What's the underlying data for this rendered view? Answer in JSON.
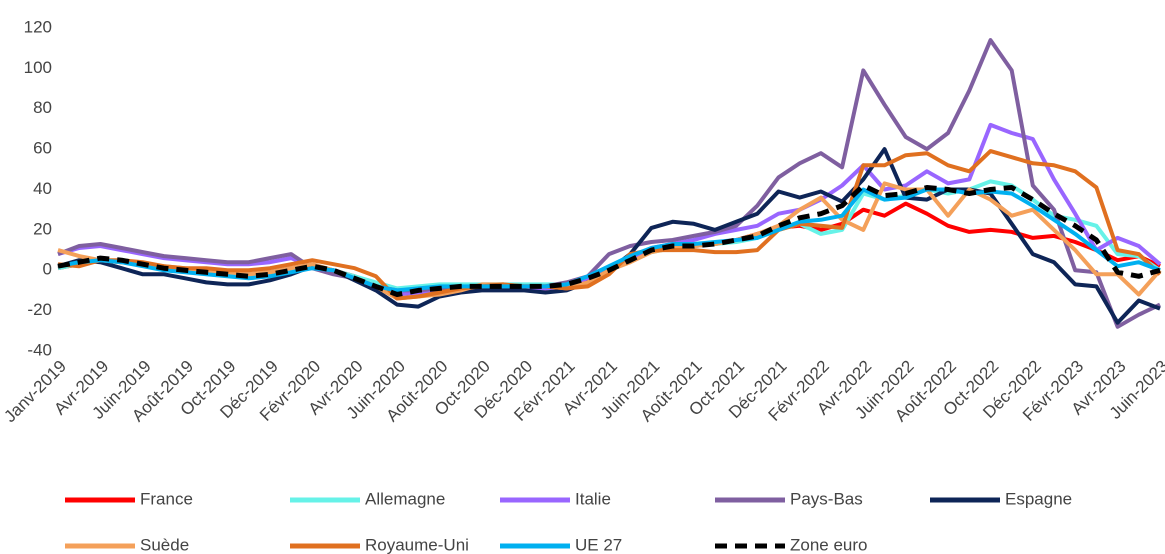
{
  "chart_data": {
    "type": "line",
    "categories": [
      "Janv-2019",
      null,
      "Avr-2019",
      null,
      "Juin-2019",
      null,
      "Août-2019",
      null,
      "Oct-2019",
      null,
      "Déc-2019",
      null,
      "Févr-2020",
      null,
      "Avr-2020",
      null,
      "Juin-2020",
      null,
      "Août-2020",
      null,
      "Oct-2020",
      null,
      "Déc-2020",
      null,
      "Févr-2021",
      null,
      "Avr-2021",
      null,
      "Juin-2021",
      null,
      "Août-2021",
      null,
      "Oct-2021",
      null,
      "Déc-2021",
      null,
      "Févr-2022",
      null,
      "Avr-2022",
      null,
      "Juin-2022",
      null,
      "Août-2022",
      null,
      "Oct-2022",
      null,
      "Déc-2022",
      null,
      "Févr-2023",
      null,
      "Avr-2023",
      null,
      "Juin-2023"
    ],
    "ylim": [
      -40,
      120
    ],
    "yticks": [
      -40,
      -20,
      0,
      20,
      40,
      60,
      80,
      100,
      120
    ],
    "grid": false,
    "series": [
      {
        "name": "France",
        "color": "#ff0000",
        "values": [
          1,
          3,
          5,
          4,
          3,
          1,
          0,
          -1,
          -2,
          -2,
          -1,
          1,
          2,
          0,
          -3,
          -8,
          -11,
          -10,
          -9,
          -8,
          -8,
          -8,
          -8,
          -9,
          -8,
          -5,
          0,
          6,
          10,
          11,
          12,
          13,
          15,
          18,
          21,
          22,
          20,
          23,
          30,
          27,
          33,
          28,
          22,
          19,
          20,
          19,
          16,
          17,
          14,
          10,
          5,
          7,
          2
        ]
      },
      {
        "name": "Allemagne",
        "color": "#66f2e8",
        "values": [
          1,
          3,
          5,
          4,
          3,
          1,
          0,
          -1,
          -2,
          -2,
          -1,
          1,
          2,
          0,
          -3,
          -6,
          -9,
          -8,
          -7,
          -7,
          -7,
          -7,
          -7,
          -7,
          -7,
          -4,
          0,
          5,
          9,
          11,
          12,
          13,
          14,
          16,
          20,
          23,
          18,
          20,
          38,
          35,
          37,
          40,
          38,
          40,
          44,
          42,
          35,
          27,
          25,
          22,
          8,
          7,
          0
        ]
      },
      {
        "name": "Italie",
        "color": "#9966ff",
        "values": [
          8,
          11,
          12,
          10,
          8,
          6,
          5,
          4,
          3,
          3,
          4,
          6,
          2,
          0,
          -4,
          -8,
          -12,
          -11,
          -10,
          -9,
          -9,
          -9,
          -9,
          -9,
          -8,
          -5,
          0,
          6,
          11,
          13,
          15,
          18,
          20,
          22,
          28,
          30,
          35,
          42,
          52,
          40,
          42,
          49,
          43,
          45,
          72,
          68,
          65,
          45,
          28,
          10,
          16,
          12,
          3
        ]
      },
      {
        "name": "Pays-Bas",
        "color": "#7f5fa0",
        "values": [
          8,
          12,
          13,
          11,
          9,
          7,
          6,
          5,
          4,
          4,
          6,
          8,
          1,
          -2,
          -4,
          -8,
          -10,
          -10,
          -9,
          -9,
          -9,
          -8,
          -8,
          -8,
          -6,
          -3,
          8,
          12,
          14,
          15,
          17,
          19,
          22,
          32,
          46,
          53,
          58,
          51,
          99,
          82,
          66,
          60,
          68,
          89,
          114,
          99,
          42,
          30,
          0,
          -1,
          -28,
          -22,
          -17
        ]
      },
      {
        "name": "Espagne",
        "color": "#0e2557",
        "values": [
          2,
          5,
          4,
          1,
          -2,
          -2,
          -4,
          -6,
          -7,
          -7,
          -5,
          -2,
          2,
          0,
          -5,
          -10,
          -17,
          -18,
          -13,
          -11,
          -10,
          -10,
          -10,
          -11,
          -10,
          -6,
          0,
          8,
          21,
          24,
          23,
          20,
          24,
          28,
          39,
          36,
          39,
          34,
          45,
          60,
          36,
          35,
          40,
          40,
          38,
          23,
          8,
          4,
          -7,
          -8,
          -26,
          -15,
          -19
        ]
      },
      {
        "name": "Suède",
        "color": "#f4a05a",
        "values": [
          10,
          7,
          5,
          4,
          3,
          2,
          1,
          0,
          -1,
          -2,
          -1,
          1,
          3,
          0,
          -4,
          -8,
          -14,
          -13,
          -12,
          -10,
          -7,
          -7,
          -8,
          -8,
          -9,
          -6,
          0,
          4,
          9,
          11,
          12,
          13,
          15,
          18,
          22,
          30,
          36,
          25,
          20,
          43,
          40,
          40,
          27,
          40,
          35,
          27,
          30,
          20,
          10,
          -2,
          -2,
          -12,
          0
        ]
      },
      {
        "name": "Royaume-Uni",
        "color": "#e07020",
        "values": [
          3,
          2,
          5,
          5,
          4,
          2,
          1,
          1,
          0,
          0,
          1,
          3,
          5,
          3,
          1,
          -3,
          -14,
          -13,
          -11,
          -9,
          -8,
          -7,
          -8,
          -8,
          -9,
          -8,
          -2,
          8,
          10,
          10,
          10,
          9,
          9,
          10,
          20,
          23,
          22,
          21,
          52,
          52,
          57,
          58,
          52,
          49,
          59,
          56,
          53,
          52,
          49,
          41,
          10,
          8,
          -2
        ]
      },
      {
        "name": "UE 27",
        "color": "#00b0f0",
        "values": [
          2,
          4,
          5,
          4,
          2,
          0,
          -1,
          -2,
          -3,
          -4,
          -3,
          -1,
          1,
          0,
          -4,
          -8,
          -10,
          -9,
          -8,
          -8,
          -8,
          -8,
          -8,
          -8,
          -7,
          -3,
          2,
          7,
          11,
          13,
          13,
          14,
          15,
          16,
          20,
          24,
          25,
          27,
          40,
          35,
          36,
          40,
          40,
          38,
          39,
          38,
          32,
          25,
          18,
          10,
          2,
          4,
          0
        ]
      },
      {
        "name": "Zone euro",
        "color": "#000000",
        "dashed": true,
        "values": [
          2,
          4,
          6,
          5,
          3,
          1,
          0,
          -1,
          -2,
          -3,
          -2,
          0,
          2,
          0,
          -4,
          -8,
          -12,
          -10,
          -9,
          -8,
          -8,
          -8,
          -8,
          -8,
          -7,
          -4,
          0,
          5,
          10,
          12,
          12,
          13,
          15,
          17,
          22,
          26,
          28,
          32,
          42,
          37,
          38,
          41,
          40,
          38,
          40,
          41,
          35,
          28,
          22,
          15,
          -1,
          -3,
          0
        ]
      }
    ]
  }
}
